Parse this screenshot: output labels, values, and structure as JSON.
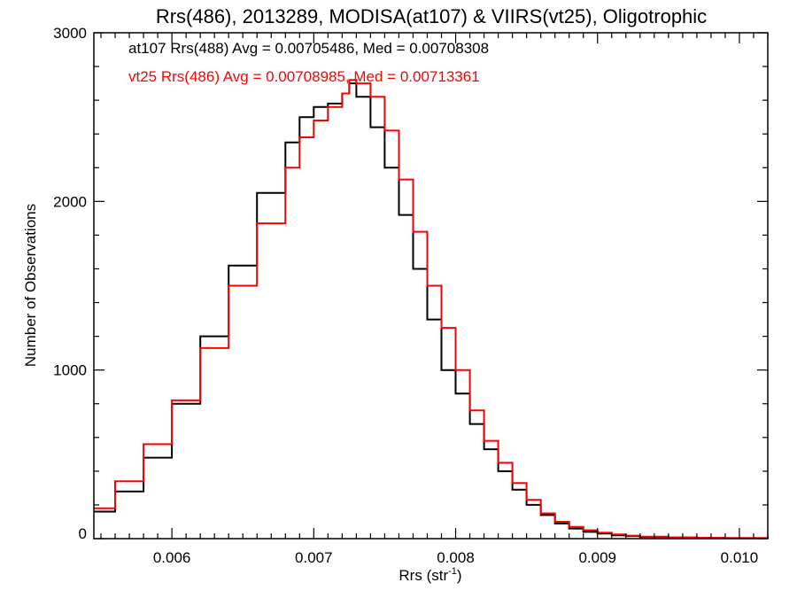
{
  "chart_data": {
    "type": "line",
    "step": true,
    "title": "Rrs(486), 2013289, MODISA(at107) & VIIRS(vt25), Oligotrophic",
    "xlabel": "Rrs (str",
    "xlabel_sup": "-1",
    "xlabel_close": ")",
    "ylabel": "Number of Observations",
    "xlim": [
      0.00545,
      0.0102
    ],
    "ylim": [
      0,
      3000
    ],
    "xticks": [
      0.006,
      0.007,
      0.008,
      0.009,
      0.01
    ],
    "xtick_labels": [
      "0.006",
      "0.007",
      "0.008",
      "0.009",
      "0.010"
    ],
    "yticks": [
      0,
      1000,
      2000,
      3000
    ],
    "ytick_labels": [
      "0",
      "1000",
      "2000",
      "3000"
    ],
    "grid": false,
    "annotations": [
      "at107 Rrs(488) Avg = 0.00705486, Med = 0.00708308",
      "vt25 Rrs(486) Avg = 0.00708985, Med = 0.00713361"
    ],
    "series": [
      {
        "color": "#000000",
        "x": [
          0.00545,
          0.0056,
          0.0058,
          0.006,
          0.0062,
          0.0064,
          0.0066,
          0.0068,
          0.0069,
          0.007,
          0.0071,
          0.0072,
          0.00725,
          0.0073,
          0.0074,
          0.0075,
          0.0076,
          0.0077,
          0.0078,
          0.0079,
          0.008,
          0.0081,
          0.0082,
          0.0083,
          0.0084,
          0.0085,
          0.0086,
          0.0087,
          0.0088,
          0.0089,
          0.009,
          0.0091,
          0.0092,
          0.0093,
          0.0095,
          0.0097,
          0.0099,
          0.0102
        ],
        "values": [
          160,
          280,
          480,
          800,
          1200,
          1620,
          2050,
          2350,
          2500,
          2560,
          2580,
          2640,
          2700,
          2620,
          2440,
          2200,
          1920,
          1600,
          1300,
          1000,
          860,
          680,
          530,
          400,
          290,
          200,
          140,
          90,
          60,
          40,
          30,
          20,
          15,
          10,
          6,
          4,
          3,
          2
        ]
      },
      {
        "color": "#ff0000",
        "x": [
          0.00545,
          0.0056,
          0.0058,
          0.006,
          0.0062,
          0.0064,
          0.0066,
          0.0068,
          0.0069,
          0.007,
          0.0071,
          0.0072,
          0.00725,
          0.0073,
          0.0074,
          0.0075,
          0.0076,
          0.0077,
          0.0078,
          0.0079,
          0.008,
          0.0081,
          0.0082,
          0.0083,
          0.0084,
          0.0085,
          0.0086,
          0.0087,
          0.0088,
          0.0089,
          0.009,
          0.0091,
          0.0092,
          0.0093,
          0.0095,
          0.0097,
          0.0099,
          0.0102
        ],
        "values": [
          180,
          340,
          560,
          820,
          1130,
          1500,
          1870,
          2200,
          2380,
          2480,
          2560,
          2640,
          2720,
          2700,
          2620,
          2420,
          2130,
          1820,
          1500,
          1250,
          1000,
          760,
          580,
          450,
          330,
          230,
          150,
          100,
          70,
          50,
          35,
          25,
          18,
          12,
          8,
          5,
          3,
          2
        ]
      }
    ]
  }
}
